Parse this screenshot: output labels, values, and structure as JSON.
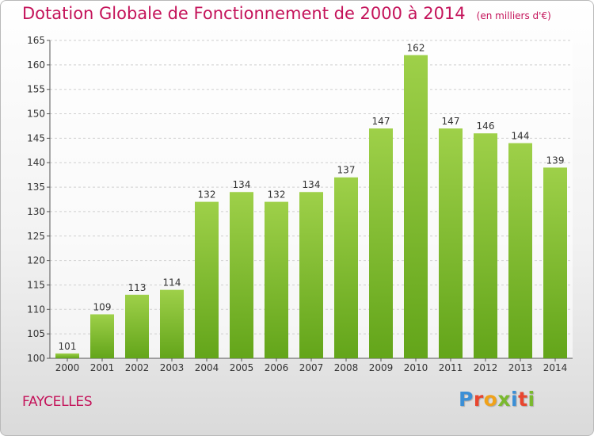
{
  "title": "Dotation Globale de Fonctionnement de 2000 à 2014",
  "unit": "(en milliers d'€)",
  "commune": "FAYCELLES",
  "logo_text": "Proxiti",
  "logo_colors": [
    "#3b8fd6",
    "#e8462f",
    "#f0a21a",
    "#7ab92e",
    "#3b8fd6",
    "#e8462f",
    "#7ab92e"
  ],
  "colors": {
    "bar_light": "#9ed049",
    "bar_dark": "#63a51a",
    "accent": "#c4135a"
  },
  "chart_data": {
    "type": "bar",
    "categories": [
      "2000",
      "2001",
      "2002",
      "2003",
      "2004",
      "2005",
      "2006",
      "2007",
      "2008",
      "2009",
      "2010",
      "2011",
      "2012",
      "2013",
      "2014"
    ],
    "values": [
      101,
      109,
      113,
      114,
      132,
      134,
      132,
      134,
      137,
      147,
      162,
      147,
      146,
      144,
      139
    ],
    "ylim": [
      100,
      165
    ],
    "yticks": [
      100,
      105,
      110,
      115,
      120,
      125,
      130,
      135,
      140,
      145,
      150,
      155,
      160,
      165
    ],
    "grid": true,
    "data_labels": true
  }
}
